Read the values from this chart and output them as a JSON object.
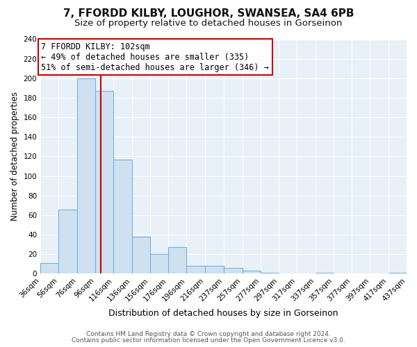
{
  "title": "7, FFORDD KILBY, LOUGHOR, SWANSEA, SA4 6PB",
  "subtitle": "Size of property relative to detached houses in Gorseinon",
  "xlabel": "Distribution of detached houses by size in Gorseinon",
  "ylabel": "Number of detached properties",
  "bar_edges": [
    36,
    56,
    76,
    96,
    116,
    136,
    156,
    176,
    196,
    216,
    237,
    257,
    277,
    297,
    317,
    337,
    357,
    377,
    397,
    417,
    437
  ],
  "bar_heights": [
    11,
    66,
    200,
    187,
    117,
    38,
    20,
    27,
    8,
    8,
    6,
    3,
    1,
    0,
    0,
    1,
    0,
    0,
    0,
    1
  ],
  "bar_color": "#cfe0f0",
  "bar_edge_color": "#6aaed6",
  "property_size": 102,
  "vline_color": "#cc0000",
  "annotation_title": "7 FFORDD KILBY: 102sqm",
  "annotation_line1": "← 49% of detached houses are smaller (335)",
  "annotation_line2": "51% of semi-detached houses are larger (346) →",
  "annotation_box_facecolor": "#ffffff",
  "annotation_box_edgecolor": "#cc0000",
  "ylim": [
    0,
    240
  ],
  "yticks": [
    0,
    20,
    40,
    60,
    80,
    100,
    120,
    140,
    160,
    180,
    200,
    220,
    240
  ],
  "footer1": "Contains HM Land Registry data © Crown copyright and database right 2024.",
  "footer2": "Contains public sector information licensed under the Open Government Licence v3.0.",
  "bg_color": "#ffffff",
  "plot_bg_color": "#e8f0f8",
  "grid_color": "#ffffff",
  "title_fontsize": 11,
  "subtitle_fontsize": 9.5,
  "xlabel_fontsize": 9,
  "ylabel_fontsize": 8.5,
  "tick_fontsize": 7.5,
  "annotation_fontsize": 8.5,
  "footer_fontsize": 6.5
}
